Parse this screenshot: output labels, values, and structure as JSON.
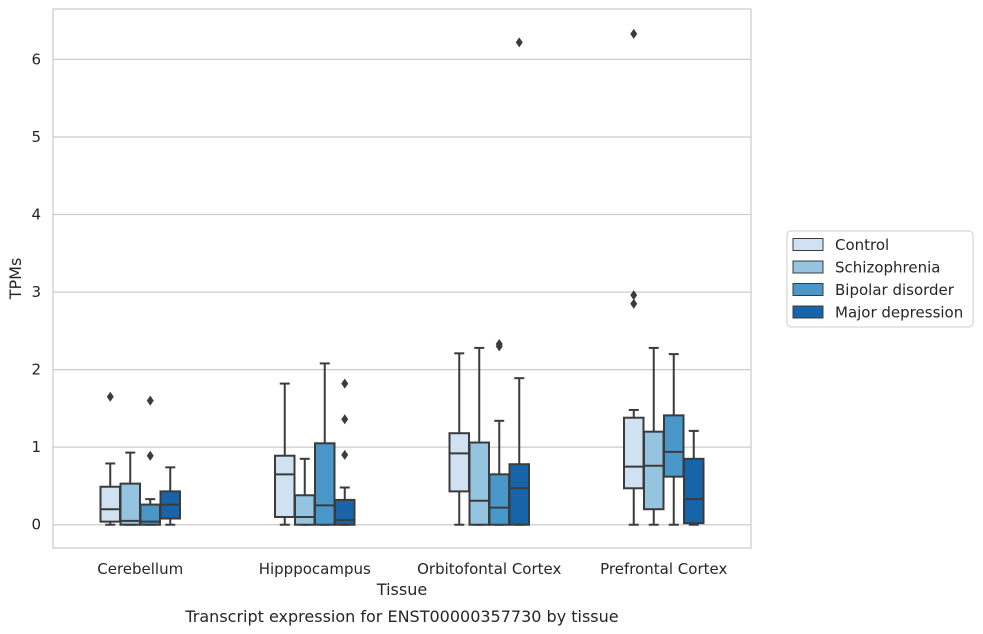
{
  "chart_data": {
    "type": "box",
    "title": "",
    "xlabel": "Tissue",
    "ylabel": "TPMs",
    "caption": "Transcript expression for ENST00000357730 by tissue",
    "ylim": [
      -0.3,
      6.65
    ],
    "yticks": [
      0,
      1,
      2,
      3,
      4,
      5,
      6
    ],
    "grid": "horizontal",
    "legend_position": "right",
    "categories": [
      "Cerebellum",
      "Hipppocampus",
      "Orbitofontal Cortex",
      "Prefrontal Cortex"
    ],
    "series": [
      {
        "name": "Control",
        "color": "#d0e1f2",
        "boxes": [
          {
            "whislo": 0.0,
            "q1": 0.04,
            "med": 0.2,
            "q3": 0.49,
            "whishi": 0.79,
            "fliers": [
              1.65
            ]
          },
          {
            "whislo": 0.0,
            "q1": 0.1,
            "med": 0.65,
            "q3": 0.89,
            "whishi": 1.82,
            "fliers": []
          },
          {
            "whislo": 0.0,
            "q1": 0.43,
            "med": 0.92,
            "q3": 1.18,
            "whishi": 2.21,
            "fliers": []
          },
          {
            "whislo": 0.0,
            "q1": 0.47,
            "med": 0.75,
            "q3": 1.38,
            "whishi": 1.48,
            "fliers": [
              2.85,
              2.96,
              6.33
            ]
          }
        ]
      },
      {
        "name": "Schizophrenia",
        "color": "#94c4df",
        "boxes": [
          {
            "whislo": 0.0,
            "q1": 0.0,
            "med": 0.05,
            "q3": 0.53,
            "whishi": 0.93,
            "fliers": []
          },
          {
            "whislo": 0.0,
            "q1": 0.0,
            "med": 0.1,
            "q3": 0.38,
            "whishi": 0.85,
            "fliers": []
          },
          {
            "whislo": 0.0,
            "q1": 0.0,
            "med": 0.31,
            "q3": 1.06,
            "whishi": 2.28,
            "fliers": []
          },
          {
            "whislo": 0.0,
            "q1": 0.2,
            "med": 0.76,
            "q3": 1.2,
            "whishi": 2.28,
            "fliers": []
          }
        ]
      },
      {
        "name": "Bipolar disorder",
        "color": "#4a98c9",
        "boxes": [
          {
            "whislo": 0.0,
            "q1": 0.0,
            "med": 0.04,
            "q3": 0.26,
            "whishi": 0.33,
            "fliers": [
              0.89,
              1.6
            ]
          },
          {
            "whislo": 0.0,
            "q1": 0.0,
            "med": 0.25,
            "q3": 1.05,
            "whishi": 2.08,
            "fliers": []
          },
          {
            "whislo": 0.0,
            "q1": 0.0,
            "med": 0.22,
            "q3": 0.65,
            "whishi": 1.34,
            "fliers": [
              2.3,
              2.33
            ]
          },
          {
            "whislo": 0.0,
            "q1": 0.62,
            "med": 0.94,
            "q3": 1.41,
            "whishi": 2.2,
            "fliers": []
          }
        ]
      },
      {
        "name": "Major depression",
        "color": "#1764ab",
        "boxes": [
          {
            "whislo": 0.0,
            "q1": 0.08,
            "med": 0.26,
            "q3": 0.43,
            "whishi": 0.74,
            "fliers": []
          },
          {
            "whislo": 0.0,
            "q1": 0.0,
            "med": 0.06,
            "q3": 0.32,
            "whishi": 0.48,
            "fliers": [
              0.9,
              1.36,
              1.82
            ]
          },
          {
            "whislo": 0.0,
            "q1": 0.0,
            "med": 0.47,
            "q3": 0.78,
            "whishi": 1.89,
            "fliers": [
              6.22
            ]
          },
          {
            "whislo": 0.0,
            "q1": 0.02,
            "med": 0.33,
            "q3": 0.85,
            "whishi": 1.21,
            "fliers": []
          }
        ]
      }
    ]
  }
}
